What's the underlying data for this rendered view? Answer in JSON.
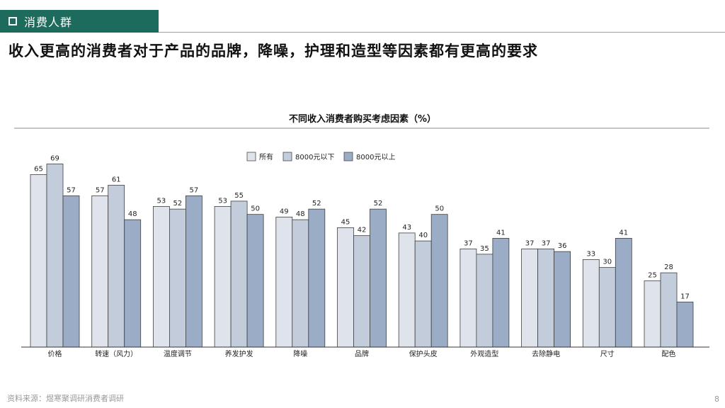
{
  "section": {
    "label": "消费人群"
  },
  "headline": "收入更高的消费者对于产品的品牌，降噪，护理和造型等因素都有更高的要求",
  "chart_data": {
    "type": "bar",
    "title": "不同收入消费者购买考虑因素（%）",
    "categories": [
      "价格",
      "转速（风力）",
      "温度调节",
      "养发护发",
      "降噪",
      "品牌",
      "保护头皮",
      "外观造型",
      "去除静电",
      "尺寸",
      "配色"
    ],
    "series": [
      {
        "name": "所有",
        "color": "#dfe4ec",
        "values": [
          65,
          57,
          53,
          53,
          49,
          45,
          43,
          37,
          37,
          33,
          25
        ]
      },
      {
        "name": "8000元以下",
        "color": "#c2ccdb",
        "values": [
          69,
          61,
          52,
          55,
          48,
          42,
          40,
          35,
          37,
          30,
          28
        ]
      },
      {
        "name": "8000元以上",
        "color": "#9aacc6",
        "values": [
          57,
          48,
          57,
          50,
          52,
          52,
          50,
          41,
          36,
          41,
          17
        ]
      }
    ],
    "ylim": [
      0,
      75
    ],
    "legend_position": "top-center",
    "data_labels": true,
    "grid": false
  },
  "footer": {
    "source": "资料来源：煜寒聚调研消费者调研"
  },
  "page_number": "8"
}
